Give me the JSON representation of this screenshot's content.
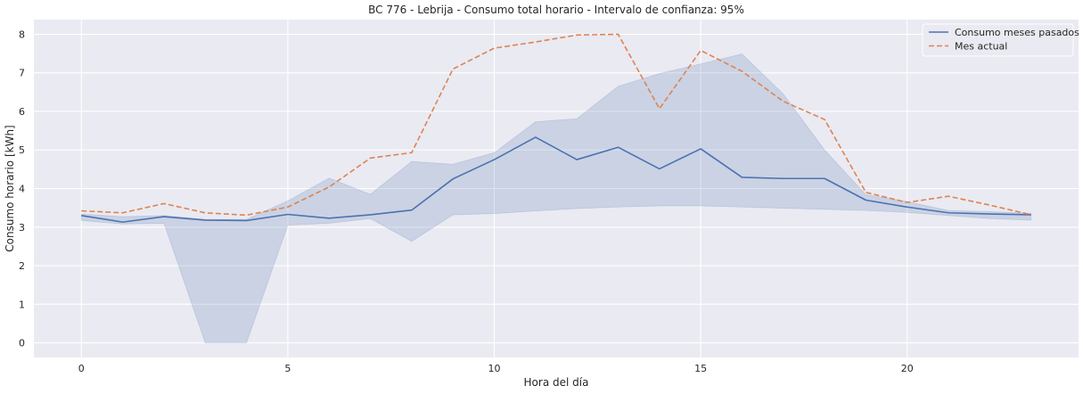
{
  "chart_data": {
    "type": "line",
    "title": "BC 776 - Lebrija - Consumo total horario - Intervalo de confianza: 95%",
    "xlabel": "Hora del día",
    "ylabel": "Consumo horario [kWh]",
    "xlim": [
      -1.15,
      24.15
    ],
    "ylim": [
      -0.38,
      8.38
    ],
    "xticks": [
      0,
      5,
      10,
      15,
      20
    ],
    "yticks": [
      0,
      1,
      2,
      3,
      4,
      5,
      6,
      7,
      8
    ],
    "grid": true,
    "legend_position": "top-right",
    "x": [
      0,
      1,
      2,
      3,
      4,
      5,
      6,
      7,
      8,
      9,
      10,
      11,
      12,
      13,
      14,
      15,
      16,
      17,
      18,
      19,
      20,
      21,
      22,
      23
    ],
    "series": [
      {
        "name": "Consumo meses pasados",
        "color": "#4c72b0",
        "style": "solid",
        "values": [
          3.3,
          3.13,
          3.27,
          3.18,
          3.17,
          3.33,
          3.23,
          3.32,
          3.44,
          4.25,
          4.75,
          5.33,
          4.75,
          5.07,
          4.51,
          5.03,
          4.29,
          4.26,
          4.26,
          3.7,
          3.52,
          3.37,
          3.34,
          3.32
        ]
      },
      {
        "name": "Mes actual",
        "color": "#dd8452",
        "style": "dashed",
        "values": [
          3.42,
          3.37,
          3.61,
          3.37,
          3.31,
          3.52,
          4.04,
          4.79,
          4.93,
          7.1,
          7.64,
          7.8,
          7.98,
          8.0,
          6.07,
          7.58,
          7.04,
          6.26,
          5.79,
          3.9,
          3.64,
          3.8,
          3.57,
          3.32
        ]
      }
    ],
    "confidence_band": {
      "series": "Consumo meses pasados",
      "color": "#4c72b0",
      "opacity": 0.2,
      "lower": [
        3.17,
        3.08,
        3.1,
        0.0,
        0.0,
        3.05,
        3.1,
        3.22,
        2.63,
        3.32,
        3.35,
        3.42,
        3.48,
        3.52,
        3.55,
        3.55,
        3.52,
        3.49,
        3.46,
        3.43,
        3.38,
        3.3,
        3.22,
        3.18
      ],
      "upper": [
        3.34,
        3.27,
        3.3,
        3.2,
        3.2,
        3.68,
        4.27,
        3.85,
        4.7,
        4.63,
        4.93,
        5.73,
        5.81,
        6.65,
        6.98,
        7.23,
        7.49,
        6.45,
        5.0,
        3.84,
        3.66,
        3.43,
        3.4,
        3.36
      ]
    }
  }
}
